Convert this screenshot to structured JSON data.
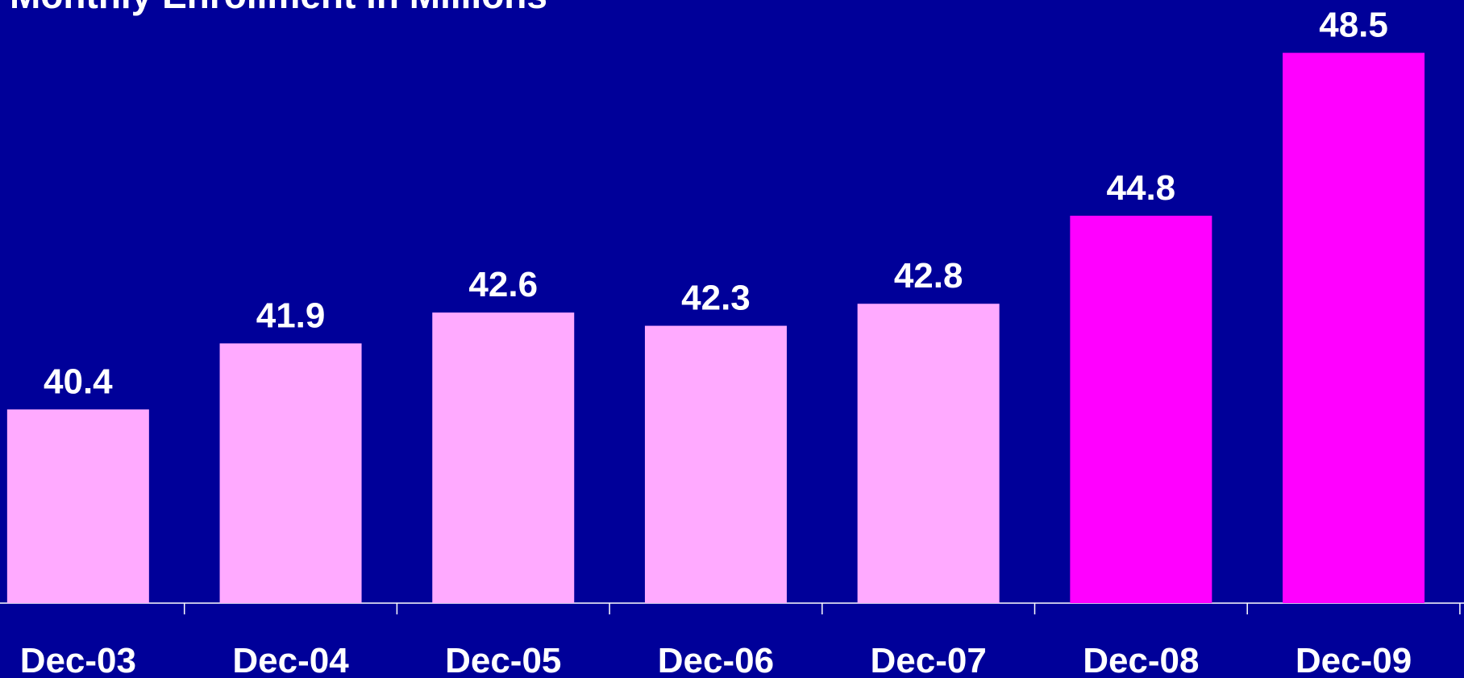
{
  "chart_data": {
    "type": "bar",
    "title": "Monthly Enrollment in Millions",
    "categories": [
      "Dec-03",
      "Dec-04",
      "Dec-05",
      "Dec-06",
      "Dec-07",
      "Dec-08",
      "Dec-09"
    ],
    "values": [
      40.4,
      41.9,
      42.6,
      42.3,
      42.8,
      44.8,
      48.5
    ],
    "colors": [
      "#ffaaff",
      "#ffaaff",
      "#ffaaff",
      "#ffaaff",
      "#ffaaff",
      "#ff00ff",
      "#ff00ff"
    ],
    "ylim": [
      36,
      49.7
    ]
  }
}
